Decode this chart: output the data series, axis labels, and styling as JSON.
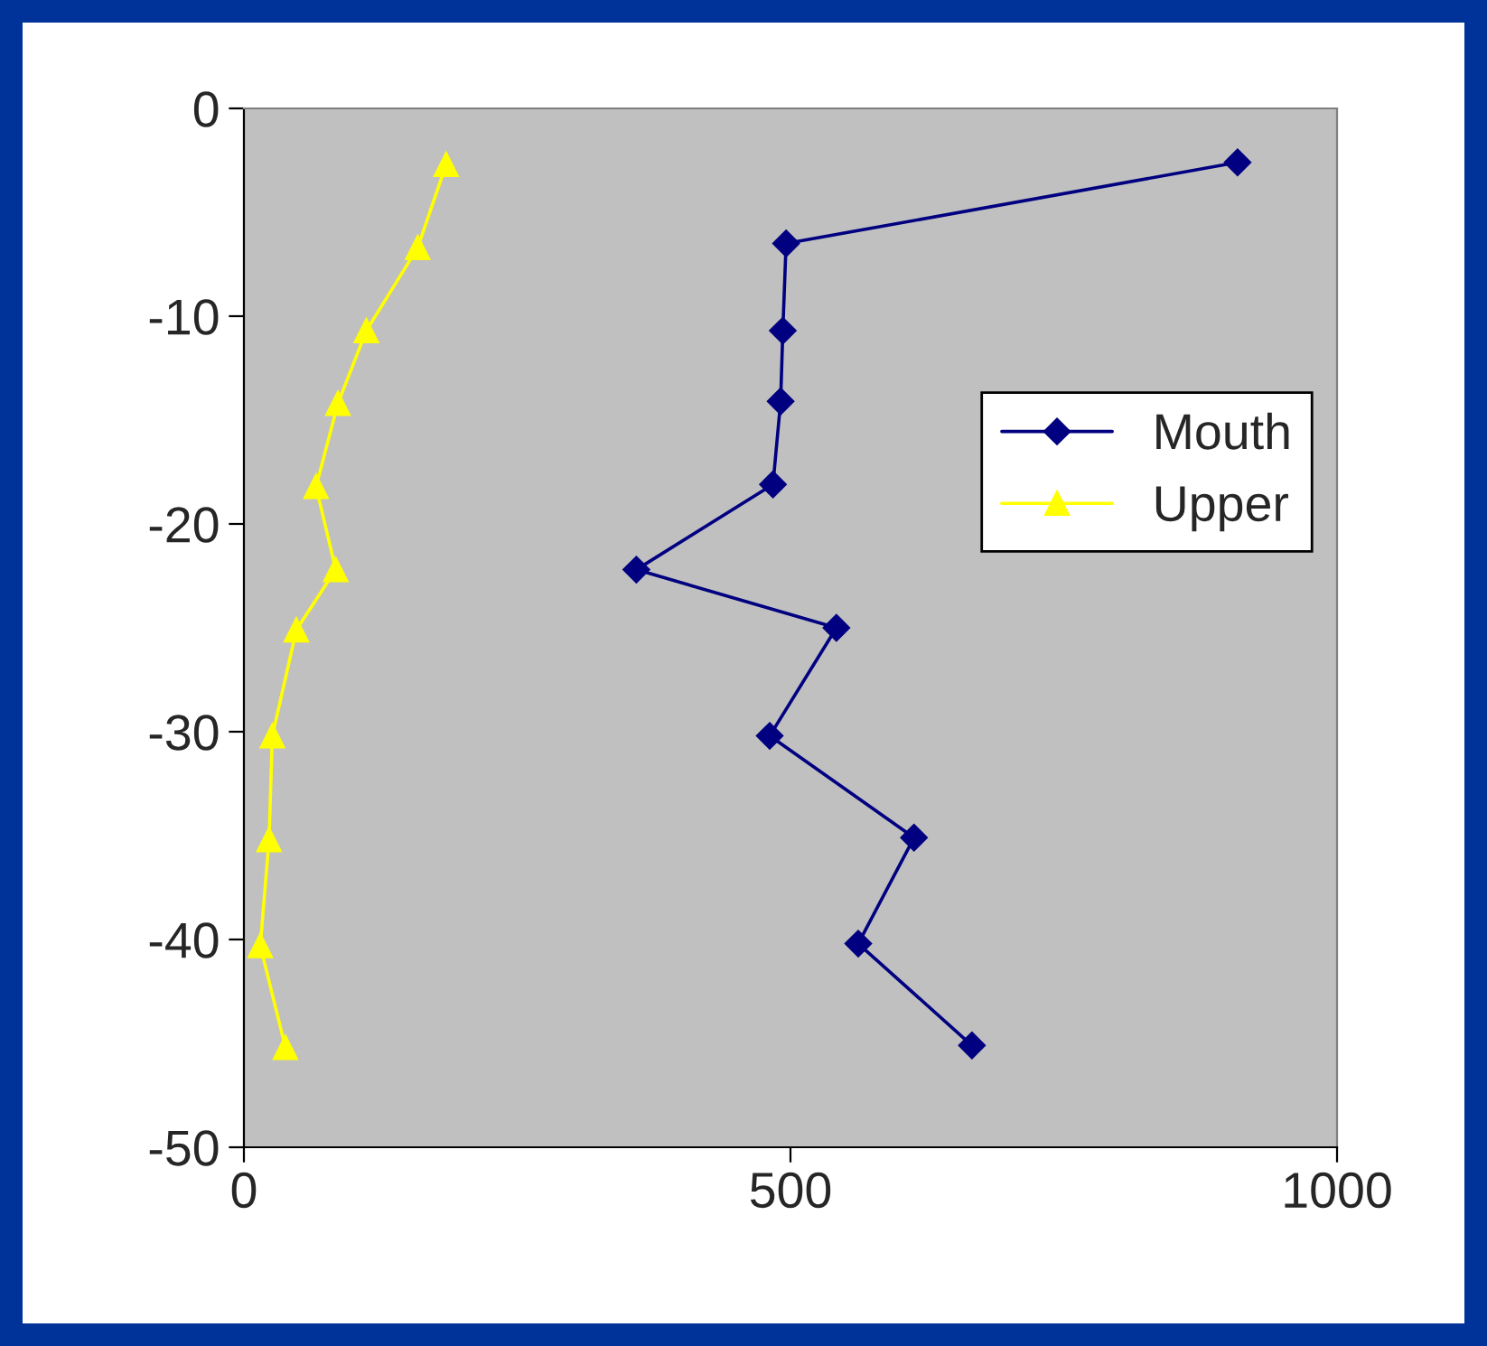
{
  "chart_data": {
    "type": "line",
    "series": [
      {
        "name": "Mouth",
        "color": "#000080",
        "marker": "diamond",
        "x": [
          909,
          496,
          493,
          491,
          484,
          359,
          542,
          481,
          613,
          562,
          666
        ],
        "values": [
          -2.6,
          -6.5,
          -10.7,
          -14.1,
          -18.1,
          -22.2,
          -25.0,
          -30.2,
          -35.1,
          -40.2,
          -45.1
        ]
      },
      {
        "name": "Upper",
        "color": "#ffff00",
        "marker": "triangle",
        "x": [
          185,
          159,
          112,
          86,
          66,
          84,
          48,
          26,
          23,
          15,
          38
        ],
        "values": [
          -2.7,
          -6.7,
          -10.7,
          -14.2,
          -18.2,
          -22.2,
          -25.1,
          -30.2,
          -35.2,
          -40.3,
          -45.2
        ]
      }
    ],
    "xlim": [
      0,
      1000
    ],
    "xticks": [
      0,
      500,
      1000
    ],
    "ylim": [
      -50,
      0
    ],
    "yticks": [
      -50,
      -40,
      -30,
      -20,
      -10,
      0
    ],
    "grid": false,
    "legend": "right",
    "line_style": "solid"
  }
}
